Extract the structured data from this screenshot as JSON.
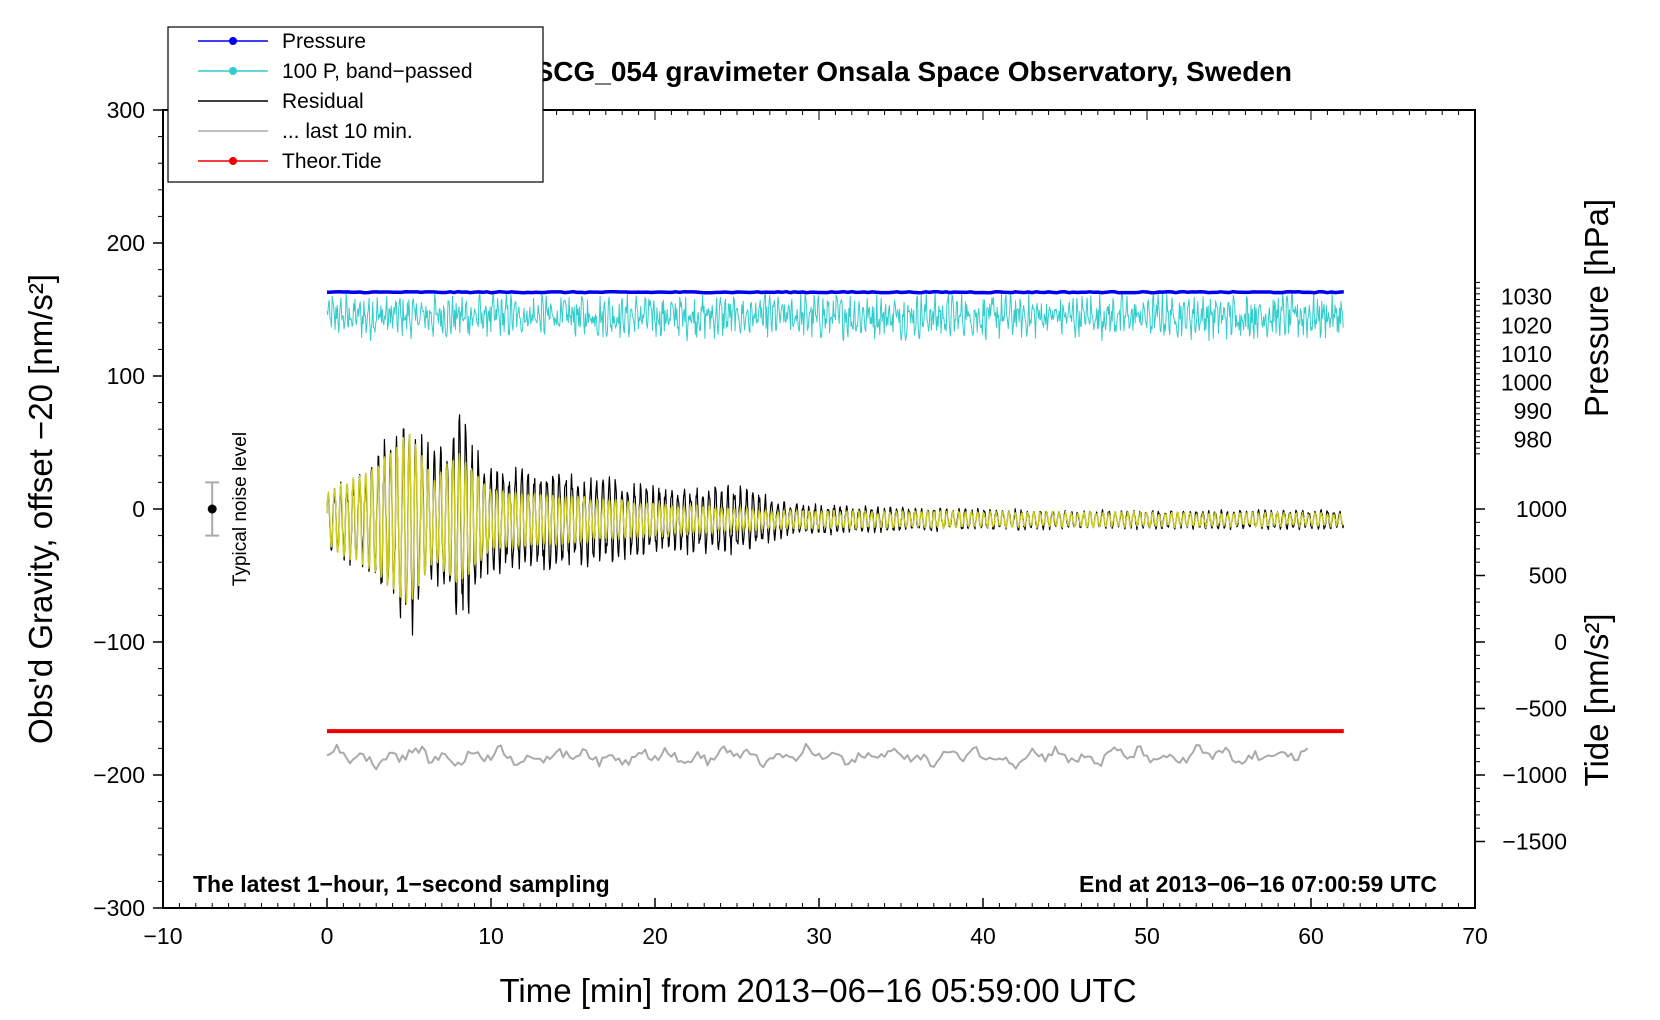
{
  "chart_data": {
    "type": "line",
    "title": "SCG_054 gravimeter Onsala Space Observatory, Sweden",
    "xlabel": "Time [min] from 2013−06−16 05:59:00 UTC",
    "ylabel": "Obs'd Gravity, offset −20 [nm/s²]",
    "y2label_pressure": "Pressure [hPa]",
    "y2label_tide": "Tide [nm/s²]",
    "xlim": [
      -10,
      70
    ],
    "ylim": [
      -300,
      300
    ],
    "x_ticks": [
      -10,
      0,
      10,
      20,
      30,
      40,
      50,
      60,
      70
    ],
    "x_tick_labels": [
      "−10",
      "0",
      "10",
      "20",
      "30",
      "40",
      "50",
      "60",
      "70"
    ],
    "y_ticks": [
      -300,
      -200,
      -100,
      0,
      100,
      200,
      300
    ],
    "y_tick_labels": [
      "−300",
      "−200",
      "−100",
      "0",
      "100",
      "200",
      "300"
    ],
    "pressure_axis": {
      "ticks": [
        980,
        990,
        1000,
        1010,
        1020,
        1030
      ],
      "tick_labels": [
        "980",
        "990",
        "1000",
        "1010",
        "1020",
        "1030"
      ],
      "value_at_left_y_0": 955.7,
      "hpa_per_left_unit": 0.4655
    },
    "tide_axis": {
      "ticks": [
        -1500,
        -1000,
        -500,
        0,
        500,
        1000
      ],
      "tick_labels": [
        "−1500",
        "−1000",
        "−500",
        "0",
        "500",
        "1000"
      ],
      "value_at_left_y_0": 1000,
      "nm_per_left_unit": 10
    },
    "legend": {
      "placement": "top-left",
      "entries": [
        {
          "label": "Pressure",
          "color": "#0000ee",
          "marker": true
        },
        {
          "label": "100 P, band−passed",
          "color": "#33cccc",
          "marker": true
        },
        {
          "label": "Residual",
          "color": "#000000",
          "marker": false
        },
        {
          "label": "... last 10 min.",
          "color": "#aaaaaa",
          "marker": false
        },
        {
          "label": "Theor.Tide",
          "color": "#ee0000",
          "marker": true
        }
      ]
    },
    "series": [
      {
        "name": "Pressure",
        "color": "#0000ee",
        "x_range": [
          0,
          62
        ],
        "approx_value": 163
      },
      {
        "name": "100 P, band−passed",
        "color": "#33cccc",
        "x_range": [
          0,
          62
        ],
        "approx_mean": 145,
        "approx_amplitude": 15
      },
      {
        "name": "Residual",
        "color": "#000000",
        "x_range": [
          0,
          62
        ],
        "approx_mean": -8,
        "envelope_points": [
          [
            0,
            25
          ],
          [
            2.5,
            45
          ],
          [
            5,
            100
          ],
          [
            6.5,
            55
          ],
          [
            8,
            88
          ],
          [
            10,
            45
          ],
          [
            14,
            42
          ],
          [
            20,
            28
          ],
          [
            25,
            28
          ],
          [
            28,
            14
          ],
          [
            35,
            10
          ],
          [
            45,
            8
          ],
          [
            62,
            8
          ]
        ]
      },
      {
        "name": "Theor.Tide",
        "color": "#ee0000",
        "x_range": [
          0,
          62
        ],
        "approx_value": -167
      },
      {
        "name": "Band-passed gravity (yellow)",
        "color": "#cccc22",
        "x_range": [
          0,
          62
        ],
        "approx_mean": -8,
        "approx_peak_amplitude": 65
      },
      {
        "name": "... last 10 min. (offset trace)",
        "color": "#aaaaaa",
        "x_range": [
          0,
          60
        ],
        "approx_mean": -186,
        "approx_amplitude": 7
      }
    ],
    "noise_bar": {
      "label": "Typical noise level",
      "x": -7,
      "center": 0,
      "half_range": 20
    },
    "annotations": {
      "bottom_left": "The latest 1−hour, 1−second sampling",
      "bottom_right": "End at 2013−06−16 07:00:59 UTC"
    },
    "grid": false
  }
}
